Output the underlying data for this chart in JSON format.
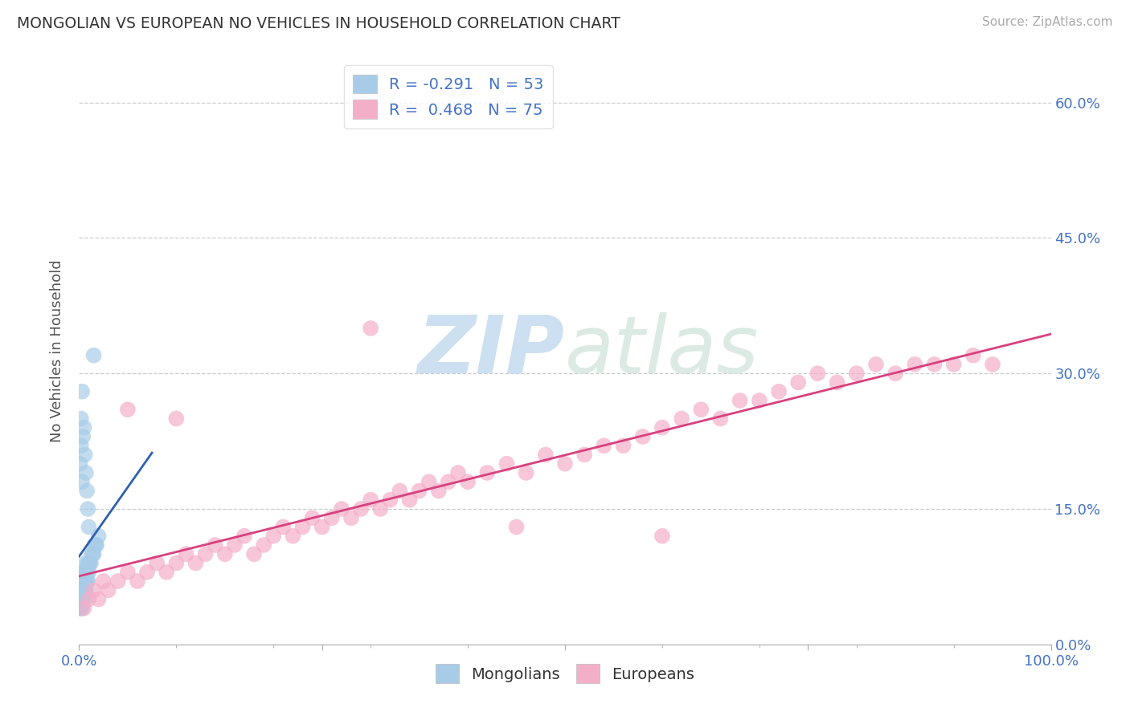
{
  "title": "MONGOLIAN VS EUROPEAN NO VEHICLES IN HOUSEHOLD CORRELATION CHART",
  "source": "Source: ZipAtlas.com",
  "xlabel_mongolians": "Mongolians",
  "xlabel_europeans": "Europeans",
  "ylabel": "No Vehicles in Household",
  "xlim": [
    0.0,
    1.0
  ],
  "ylim": [
    0.0,
    0.65
  ],
  "ytick_vals": [
    0.0,
    0.15,
    0.3,
    0.45,
    0.6
  ],
  "ytick_labels": [
    "0.0%",
    "15.0%",
    "30.0%",
    "45.0%",
    "60.0%"
  ],
  "mongolian_R": -0.291,
  "mongolian_N": 53,
  "european_R": 0.468,
  "european_N": 75,
  "blue_scatter_color": "#a8cce8",
  "pink_scatter_color": "#f4afc8",
  "blue_line_color": "#3060b0",
  "pink_line_color": "#d84080",
  "title_color": "#333333",
  "axis_label_color": "#555555",
  "tick_label_color": "#4472c4",
  "source_color": "#aaaaaa",
  "watermark_color": "#dce8f0",
  "legend_text_color": "#4472c4",
  "grid_color": "#cccccc",
  "background_color": "#ffffff",
  "mongolian_x": [
    0.001,
    0.001,
    0.001,
    0.002,
    0.002,
    0.002,
    0.002,
    0.003,
    0.003,
    0.003,
    0.003,
    0.004,
    0.004,
    0.004,
    0.004,
    0.005,
    0.005,
    0.005,
    0.005,
    0.006,
    0.006,
    0.006,
    0.007,
    0.007,
    0.007,
    0.008,
    0.008,
    0.009,
    0.009,
    0.01,
    0.01,
    0.011,
    0.012,
    0.013,
    0.014,
    0.015,
    0.016,
    0.017,
    0.018,
    0.02,
    0.001,
    0.002,
    0.002,
    0.003,
    0.003,
    0.004,
    0.005,
    0.006,
    0.007,
    0.008,
    0.009,
    0.01,
    0.015
  ],
  "mongolian_y": [
    0.04,
    0.05,
    0.06,
    0.04,
    0.05,
    0.06,
    0.07,
    0.04,
    0.05,
    0.06,
    0.07,
    0.05,
    0.06,
    0.07,
    0.08,
    0.05,
    0.06,
    0.07,
    0.08,
    0.06,
    0.07,
    0.08,
    0.06,
    0.07,
    0.09,
    0.07,
    0.08,
    0.07,
    0.09,
    0.08,
    0.09,
    0.09,
    0.09,
    0.1,
    0.1,
    0.1,
    0.11,
    0.11,
    0.11,
    0.12,
    0.2,
    0.22,
    0.25,
    0.18,
    0.28,
    0.23,
    0.24,
    0.21,
    0.19,
    0.17,
    0.15,
    0.13,
    0.32
  ],
  "european_x": [
    0.005,
    0.01,
    0.015,
    0.02,
    0.025,
    0.03,
    0.04,
    0.05,
    0.06,
    0.07,
    0.08,
    0.09,
    0.1,
    0.11,
    0.12,
    0.13,
    0.14,
    0.15,
    0.16,
    0.17,
    0.18,
    0.19,
    0.2,
    0.21,
    0.22,
    0.23,
    0.24,
    0.25,
    0.26,
    0.27,
    0.28,
    0.29,
    0.3,
    0.31,
    0.32,
    0.33,
    0.34,
    0.35,
    0.36,
    0.37,
    0.38,
    0.39,
    0.4,
    0.42,
    0.44,
    0.46,
    0.48,
    0.5,
    0.52,
    0.54,
    0.56,
    0.58,
    0.6,
    0.62,
    0.64,
    0.66,
    0.68,
    0.7,
    0.72,
    0.74,
    0.76,
    0.78,
    0.8,
    0.82,
    0.84,
    0.86,
    0.88,
    0.9,
    0.92,
    0.94,
    0.05,
    0.1,
    0.3,
    0.45,
    0.6
  ],
  "european_y": [
    0.04,
    0.05,
    0.06,
    0.05,
    0.07,
    0.06,
    0.07,
    0.08,
    0.07,
    0.08,
    0.09,
    0.08,
    0.09,
    0.1,
    0.09,
    0.1,
    0.11,
    0.1,
    0.11,
    0.12,
    0.1,
    0.11,
    0.12,
    0.13,
    0.12,
    0.13,
    0.14,
    0.13,
    0.14,
    0.15,
    0.14,
    0.15,
    0.16,
    0.15,
    0.16,
    0.17,
    0.16,
    0.17,
    0.18,
    0.17,
    0.18,
    0.19,
    0.18,
    0.19,
    0.2,
    0.19,
    0.21,
    0.2,
    0.21,
    0.22,
    0.22,
    0.23,
    0.24,
    0.25,
    0.26,
    0.25,
    0.27,
    0.27,
    0.28,
    0.29,
    0.3,
    0.29,
    0.3,
    0.31,
    0.3,
    0.31,
    0.31,
    0.31,
    0.32,
    0.31,
    0.26,
    0.25,
    0.35,
    0.13,
    0.12
  ]
}
